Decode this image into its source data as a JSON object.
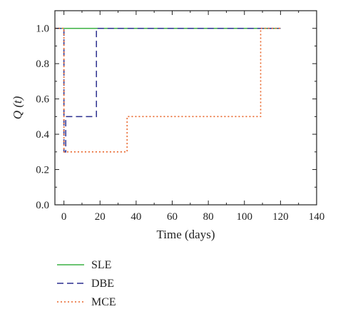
{
  "chart_data": {
    "type": "line",
    "xlabel": "Time (days)",
    "ylabel": "Q (t)",
    "xlim": [
      -5,
      140
    ],
    "ylim": [
      0.0,
      1.1
    ],
    "xticks": [
      0,
      20,
      40,
      60,
      80,
      100,
      120,
      140
    ],
    "xtick_labels": [
      "0",
      "20",
      "40",
      "60",
      "80",
      "100",
      "120",
      "140"
    ],
    "yticks": [
      0.0,
      0.2,
      0.4,
      0.6,
      0.8,
      1.0
    ],
    "ytick_labels": [
      "0.0",
      "0.2",
      "0.4",
      "0.6",
      "0.8",
      "1.0"
    ],
    "grid": false,
    "legend_position": "below-left",
    "series": [
      {
        "name": "SLE",
        "color": "#3cb043",
        "dash": "solid",
        "x": [
          -5,
          0,
          0,
          120
        ],
        "y": [
          1.0,
          1.0,
          1.0,
          1.0
        ]
      },
      {
        "name": "DBE",
        "color": "#2b2f8f",
        "dash": "dashed",
        "x": [
          -5,
          0,
          0,
          1,
          1,
          18,
          18,
          120
        ],
        "y": [
          1.0,
          1.0,
          0.3,
          0.3,
          0.5,
          0.5,
          1.0,
          1.0
        ]
      },
      {
        "name": "MCE",
        "color": "#e8652a",
        "dash": "dotted",
        "x": [
          -5,
          0,
          0,
          35,
          35,
          109,
          109,
          120
        ],
        "y": [
          1.0,
          1.0,
          0.3,
          0.3,
          0.5,
          0.5,
          1.0,
          1.0
        ]
      }
    ]
  }
}
